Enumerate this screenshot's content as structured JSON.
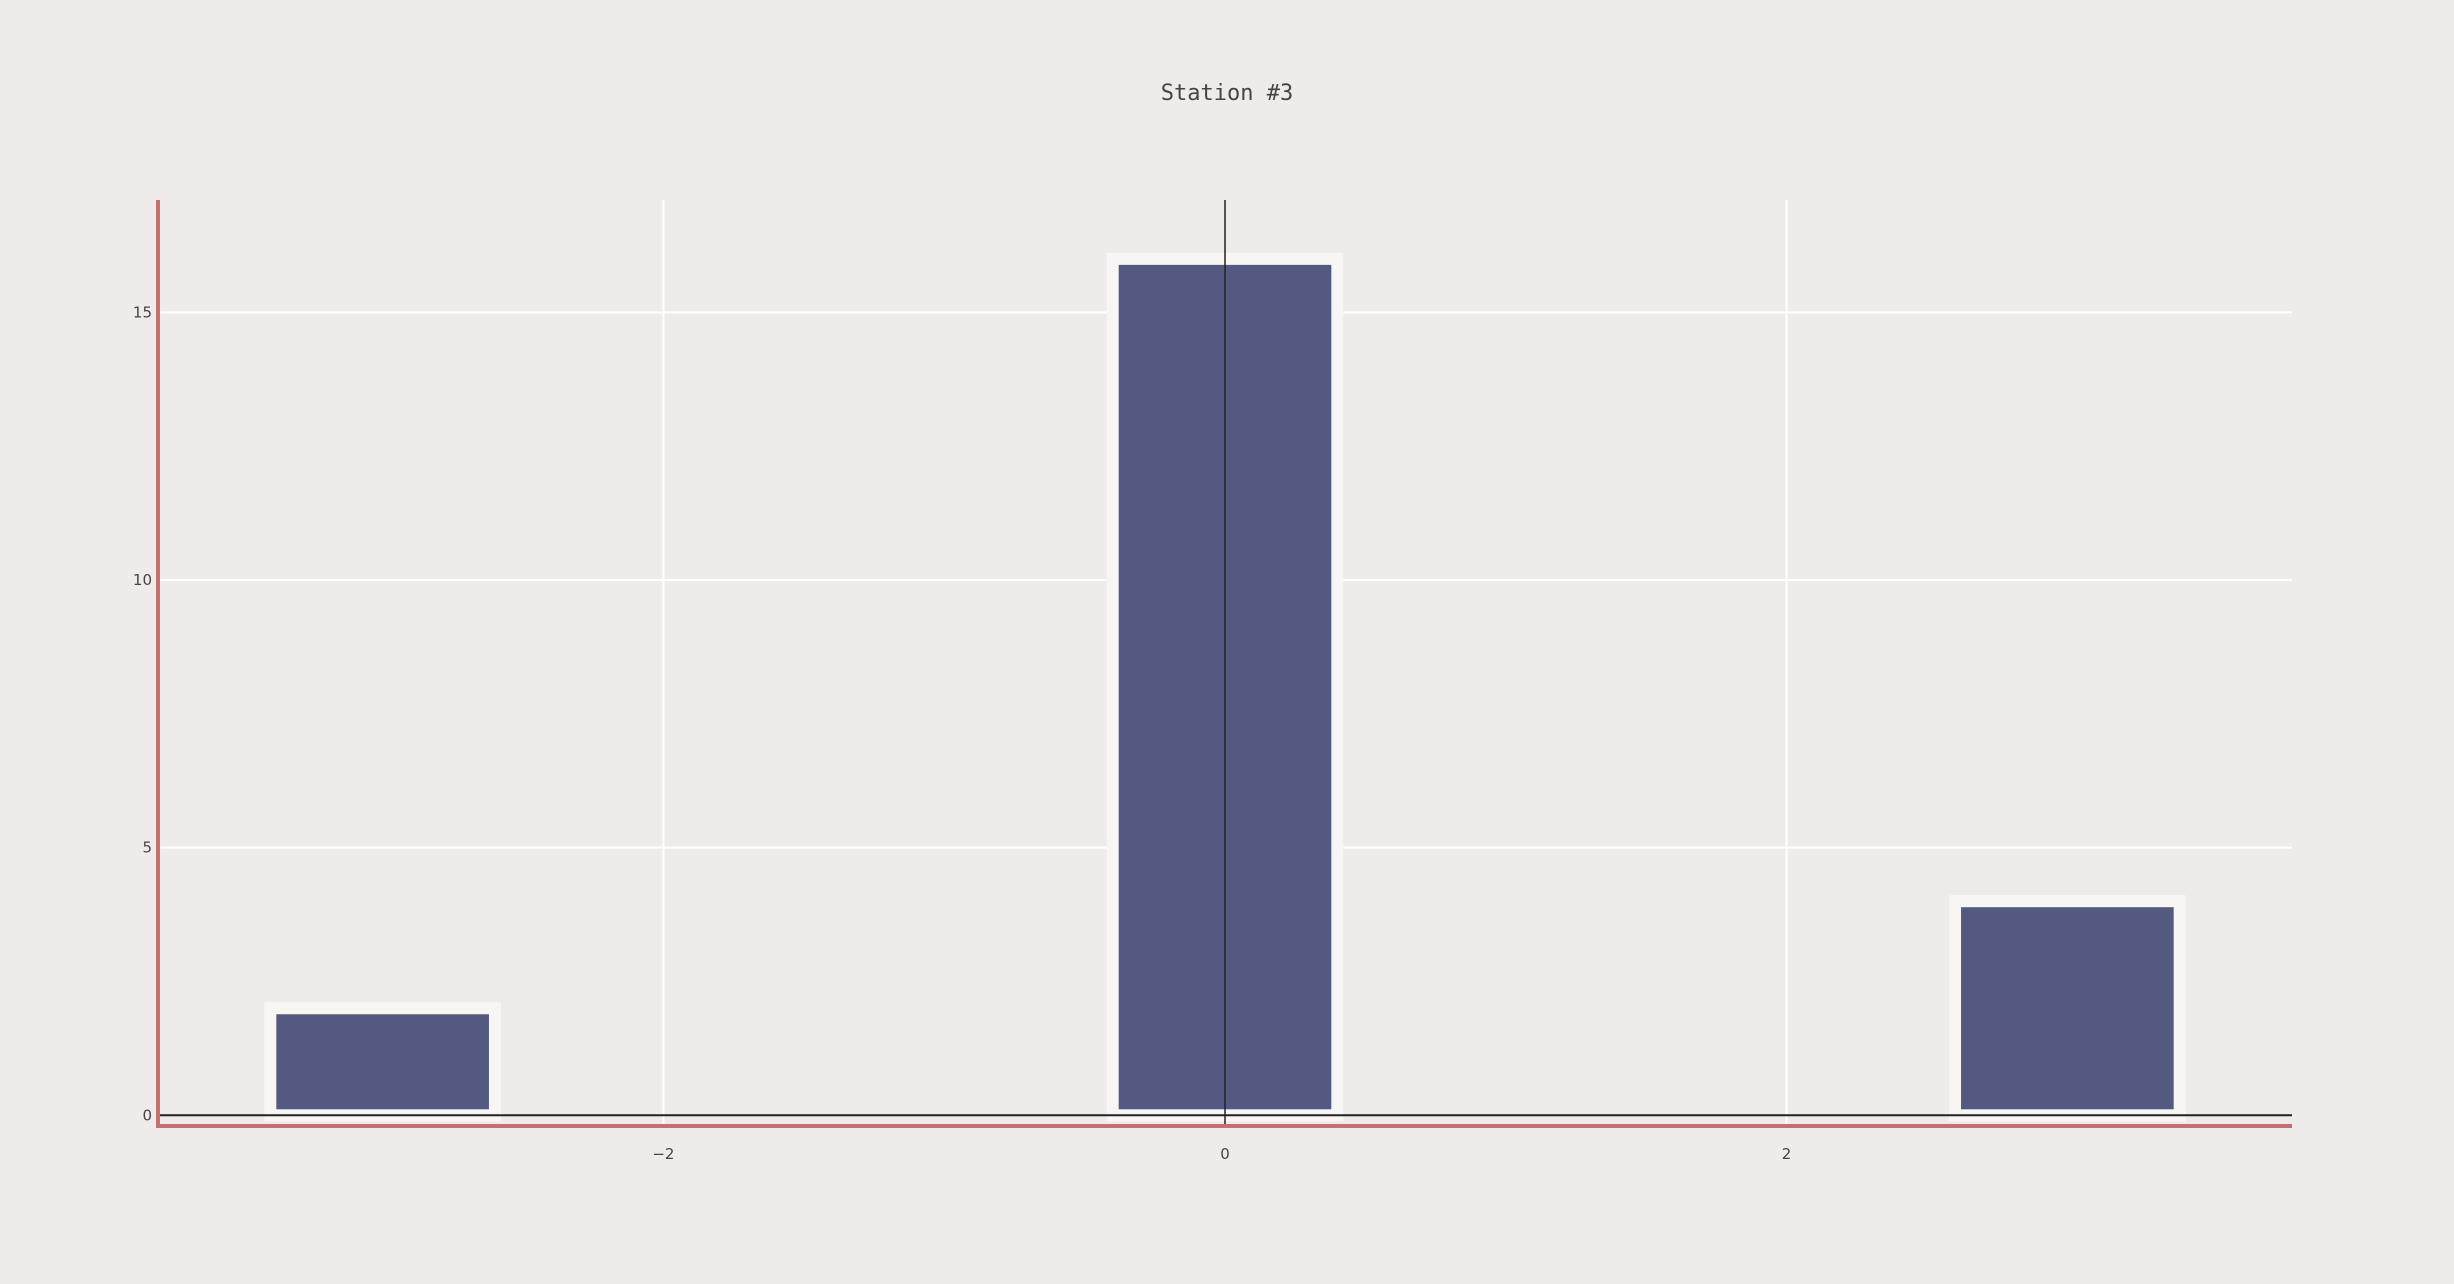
{
  "chart_data": {
    "type": "bar",
    "title": "Station #3",
    "xlabel": "",
    "ylabel": "",
    "x_range": [
      -3.8,
      3.8
    ],
    "y_range": [
      -0.2,
      17.1
    ],
    "x_ticks": [
      -2,
      0,
      2
    ],
    "x_tick_labels": [
      "−2",
      "0",
      "2"
    ],
    "y_ticks": [
      0,
      5,
      10,
      15
    ],
    "y_tick_labels": [
      "0",
      "5",
      "10",
      "15"
    ],
    "grid": true,
    "legend": "none",
    "bar_width": 0.8,
    "series": [
      {
        "x": [
          -3,
          0,
          3
        ],
        "values": [
          2,
          16,
          4
        ]
      }
    ],
    "colors": {
      "background": "#efebea",
      "plot_background": "#efebea",
      "bar_fill": "#545982",
      "bar_outline": "#f7f6f5",
      "grid": "#ffffff",
      "zeroline": "#222222",
      "axis_line": "#c27171",
      "text": "#444444"
    }
  }
}
